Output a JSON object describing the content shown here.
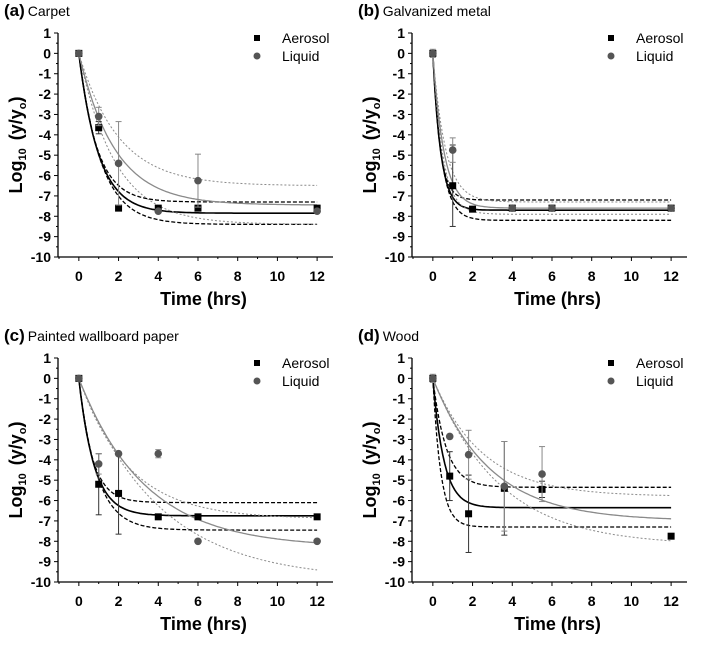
{
  "chart_data": [
    {
      "type": "scatter",
      "label": "(a)",
      "title": "Carpet",
      "xlabel": "Time (hrs)",
      "ylabel": "Log10 (y/yo)",
      "xlim": [
        -1.05,
        12.8
      ],
      "ylim": [
        -10,
        1
      ],
      "xticks": [
        0,
        2,
        4,
        6,
        8,
        10,
        12
      ],
      "yticks": [
        1,
        0,
        -1,
        -2,
        -3,
        -4,
        -5,
        -6,
        -7,
        -8,
        -9,
        -10
      ],
      "legend": [
        "Aerosol",
        "Liquid"
      ],
      "legend_position": "top-right",
      "series": [
        {
          "name": "Aerosol",
          "points": [
            [
              0,
              0,
              0
            ],
            [
              1,
              -3.65,
              0.3
            ],
            [
              2,
              -7.6,
              0
            ],
            [
              4,
              -7.6,
              0
            ],
            [
              6,
              -7.6,
              0
            ],
            [
              12,
              -7.6,
              0
            ]
          ],
          "fit": {
            "plateau": -7.85,
            "k": 1.0
          },
          "ci": [
            {
              "plateau": -7.3,
              "k": 1.1
            },
            {
              "plateau": -8.4,
              "k": 0.9
            }
          ]
        },
        {
          "name": "Liquid",
          "points": [
            [
              0,
              0,
              0
            ],
            [
              1,
              -3.1,
              0.45
            ],
            [
              2,
              -5.4,
              2.05
            ],
            [
              4,
              -7.75,
              0
            ],
            [
              6,
              -6.25,
              1.3
            ],
            [
              12,
              -7.75,
              0
            ]
          ],
          "fit": {
            "plateau": -7.45,
            "k": 0.55
          },
          "ci": [
            {
              "plateau": -6.5,
              "k": 0.5
            },
            {
              "plateau": -8.4,
              "k": 0.55
            }
          ]
        }
      ]
    },
    {
      "type": "scatter",
      "label": "(b)",
      "title": "Galvanized metal",
      "xlabel": "Time (hrs)",
      "ylabel": "Log10 (y/yo)",
      "xlim": [
        -1.05,
        12.8
      ],
      "ylim": [
        -10,
        1
      ],
      "xticks": [
        0,
        2,
        4,
        6,
        8,
        10,
        12
      ],
      "yticks": [
        1,
        0,
        -1,
        -2,
        -3,
        -4,
        -5,
        -6,
        -7,
        -8,
        -9,
        -10
      ],
      "legend": [
        "Aerosol",
        "Liquid"
      ],
      "legend_position": "top-right",
      "series": [
        {
          "name": "Aerosol",
          "points": [
            [
              0,
              0,
              0
            ],
            [
              1,
              -6.5,
              2.0
            ],
            [
              2,
              -7.65,
              0
            ],
            [
              4,
              -7.6,
              0
            ],
            [
              6,
              -7.6,
              0
            ],
            [
              12,
              -7.6,
              0
            ]
          ],
          "fit": {
            "plateau": -7.7,
            "k": 2.5
          },
          "ci": [
            {
              "plateau": -7.2,
              "k": 2.8
            },
            {
              "plateau": -8.2,
              "k": 2.2
            }
          ]
        },
        {
          "name": "Liquid",
          "points": [
            [
              0,
              0,
              0.2
            ],
            [
              1,
              -4.75,
              0.6
            ],
            [
              4,
              -7.6,
              0
            ],
            [
              6,
              -7.6,
              0
            ],
            [
              12,
              -7.6,
              0
            ]
          ],
          "fit": {
            "plateau": -7.6,
            "k": 1.8
          },
          "ci": [
            {
              "plateau": -7.3,
              "k": 1.6
            },
            {
              "plateau": -7.9,
              "k": 2.0
            }
          ]
        }
      ]
    },
    {
      "type": "scatter",
      "label": "(c)",
      "title": "Painted wallboard paper",
      "xlabel": "Time (hrs)",
      "ylabel": "Log10 (y/yo)",
      "xlim": [
        -1.05,
        12.8
      ],
      "ylim": [
        -10,
        1
      ],
      "xticks": [
        0,
        2,
        4,
        6,
        8,
        10,
        12
      ],
      "yticks": [
        1,
        0,
        -1,
        -2,
        -3,
        -4,
        -5,
        -6,
        -7,
        -8,
        -9,
        -10
      ],
      "legend": [
        "Aerosol",
        "Liquid"
      ],
      "legend_position": "top-right",
      "series": [
        {
          "name": "Aerosol",
          "points": [
            [
              0,
              0,
              0
            ],
            [
              1,
              -5.2,
              1.5
            ],
            [
              2,
              -5.65,
              2.0
            ],
            [
              4,
              -6.8,
              0
            ],
            [
              6,
              -6.8,
              0
            ],
            [
              12,
              -6.8,
              0
            ]
          ],
          "fit": {
            "plateau": -6.75,
            "k": 1.3
          },
          "ci": [
            {
              "plateau": -6.1,
              "k": 1.5
            },
            {
              "plateau": -7.45,
              "k": 1.1
            }
          ]
        },
        {
          "name": "Liquid",
          "points": [
            [
              0,
              0,
              0
            ],
            [
              1,
              -4.2,
              0.5
            ],
            [
              2,
              -3.7,
              0
            ],
            [
              4,
              -3.7,
              0.2
            ],
            [
              6,
              -8.0,
              0
            ],
            [
              12,
              -8.0,
              0
            ]
          ],
          "fit": {
            "plateau": -8.3,
            "k": 0.3
          },
          "ci": [
            {
              "plateau": -6.9,
              "k": 0.4
            },
            {
              "plateau": -9.9,
              "k": 0.25
            }
          ]
        }
      ]
    },
    {
      "type": "scatter",
      "label": "(d)",
      "title": "Wood",
      "xlabel": "Time (hrs)",
      "ylabel": "Log10 (y/yo)",
      "xlim": [
        -1.05,
        12.8
      ],
      "ylim": [
        -10,
        1
      ],
      "xticks": [
        0,
        2,
        4,
        6,
        8,
        10,
        12
      ],
      "yticks": [
        1,
        0,
        -1,
        -2,
        -3,
        -4,
        -5,
        -6,
        -7,
        -8,
        -9,
        -10
      ],
      "legend": [
        "Aerosol",
        "Liquid"
      ],
      "legend_position": "top-right",
      "series": [
        {
          "name": "Aerosol",
          "points": [
            [
              0,
              0,
              0
            ],
            [
              0.85,
              -4.8,
              1.2
            ],
            [
              1.8,
              -6.65,
              1.9
            ],
            [
              3.6,
              -5.4,
              2.3
            ],
            [
              5.5,
              -5.45,
              0.4
            ],
            [
              12,
              -7.75,
              0
            ]
          ],
          "fit": {
            "plateau": -6.35,
            "k": 1.8
          },
          "ci": [
            {
              "plateau": -5.35,
              "k": 1.5
            },
            {
              "plateau": -7.3,
              "k": 2.5
            }
          ]
        },
        {
          "name": "Liquid",
          "points": [
            [
              0,
              0,
              0.2
            ],
            [
              0.85,
              -2.85,
              0
            ],
            [
              1.8,
              -3.75,
              1.2
            ],
            [
              3.6,
              -5.3,
              2.2
            ],
            [
              5.5,
              -4.7,
              1.35
            ]
          ],
          "fit": {
            "plateau": -7.0,
            "k": 0.35
          },
          "ci": [
            {
              "plateau": -5.8,
              "k": 0.4
            },
            {
              "plateau": -8.2,
              "k": 0.3
            }
          ]
        }
      ]
    }
  ],
  "colors": {
    "aerosol": "#000000",
    "liquid": "#555555",
    "liquid_fit": "#8a8a8a"
  }
}
